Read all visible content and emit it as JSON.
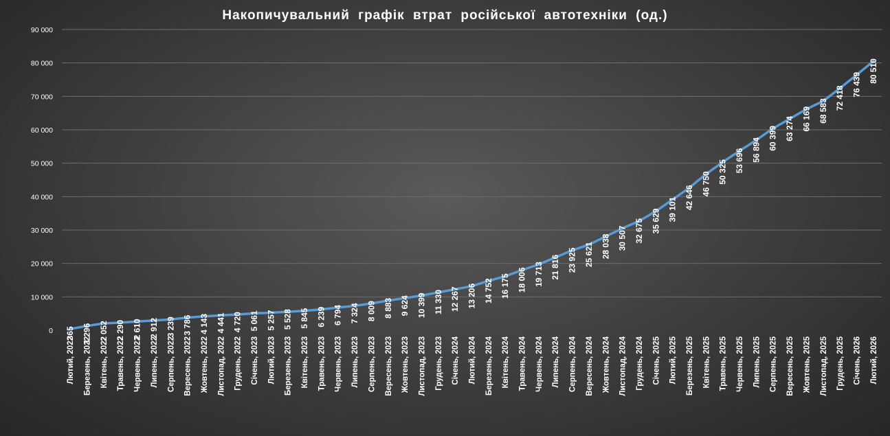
{
  "chart_data": {
    "type": "line",
    "title": "Накопичувальний графік втрат російської автотехніки (од.)",
    "xlabel": "",
    "ylabel": "",
    "ylim": [
      0,
      90000
    ],
    "yticks": [
      0,
      10000,
      20000,
      30000,
      40000,
      50000,
      60000,
      70000,
      80000,
      90000
    ],
    "ytick_labels": [
      "0",
      "10 000",
      "20 000",
      "30 000",
      "40 000",
      "50 000",
      "60 000",
      "70 000",
      "80 000",
      "90 000"
    ],
    "grid": true,
    "line_color": "#5b9bd5",
    "categories": [
      "Лютий, 2022",
      "Березень, 2022",
      "Квітень, 2022",
      "Травень, 2022",
      "Червень, 2022",
      "Липень, 2022",
      "Серпень, 2022",
      "Вересень, 2022",
      "Жовтень, 2022",
      "Листопад, 2022",
      "Грудень, 2022",
      "Січень, 2023",
      "Лютий, 2023",
      "Березень, 2023",
      "Квітень, 2023",
      "Травень, 2023",
      "Червень, 2023",
      "Липень, 2023",
      "Серпень, 2023",
      "Вересень, 2023",
      "Жовтень, 2023",
      "Листопад, 2023",
      "Грудень, 2023",
      "Січень, 2024",
      "Лютий, 2024",
      "Березень, 2024",
      "Квітень, 2024",
      "Травень, 2024",
      "Червень, 2024",
      "Липень, 2024",
      "Серпень, 2024",
      "Вересень, 2024",
      "Жовтень, 2024",
      "Листопад, 2024",
      "Грудень, 2024",
      "Січень, 2025",
      "Лютий, 2025",
      "Березень, 2025",
      "Квітень, 2025",
      "Травень, 2025",
      "Червень, 2025",
      "Липень, 2025",
      "Серпень, 2025",
      "Вересень, 2025",
      "Жовтень, 2025",
      "Листопад, 2025",
      "Грудень, 2025",
      "Січень, 2026",
      "Лютий, 2026"
    ],
    "values": [
      365,
      1296,
      2052,
      2290,
      2610,
      2912,
      3239,
      3786,
      4143,
      4441,
      4720,
      5061,
      5257,
      5528,
      5845,
      6239,
      6794,
      7324,
      8009,
      8883,
      9624,
      10399,
      11330,
      12267,
      13206,
      14752,
      16175,
      18006,
      19713,
      21816,
      23925,
      25621,
      28038,
      30507,
      32675,
      35629,
      39101,
      42646,
      46750,
      50325,
      53696,
      56894,
      60399,
      63274,
      66169,
      68583,
      72418,
      76439,
      80510
    ],
    "data_labels": [
      "365",
      "1 296",
      "2 052",
      "2 290",
      "2 610",
      "2 912",
      "3 239",
      "3 786",
      "4 143",
      "4 441",
      "4 720",
      "5 061",
      "5 257",
      "5 528",
      "5 845",
      "6 239",
      "6 794",
      "7 324",
      "8 009",
      "8 883",
      "9 624",
      "10 399",
      "11 330",
      "12 267",
      "13 206",
      "14 752",
      "16 175",
      "18 006",
      "19 713",
      "21 816",
      "23 925",
      "25 621",
      "28 038",
      "30 507",
      "32 675",
      "35 629",
      "39 101",
      "42 646",
      "46 750",
      "50 325",
      "53 696",
      "56 894",
      "60 399",
      "63 274",
      "66 169",
      "68 583",
      "72 418",
      "76 439",
      "80 510"
    ]
  }
}
